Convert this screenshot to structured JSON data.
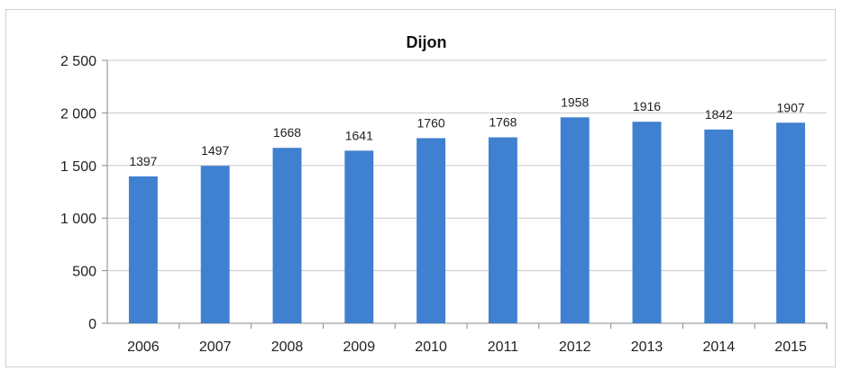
{
  "chart_data": {
    "type": "bar",
    "title": "Dijon",
    "xlabel": "",
    "ylabel": "",
    "categories": [
      "2006",
      "2007",
      "2008",
      "2009",
      "2010",
      "2011",
      "2012",
      "2013",
      "2014",
      "2015"
    ],
    "values": [
      1397,
      1497,
      1668,
      1641,
      1760,
      1768,
      1958,
      1916,
      1842,
      1907
    ],
    "data_labels": [
      "1397",
      "1497",
      "1668",
      "1641",
      "1760",
      "1768",
      "1958",
      "1916",
      "1842",
      "1907"
    ],
    "ylim": [
      0,
      2500
    ],
    "yticks": [
      0,
      500,
      1000,
      1500,
      2000,
      2500
    ],
    "ytick_labels": [
      "0",
      "500",
      "1 000",
      "1 500",
      "2 000",
      "2 500"
    ],
    "grid": true,
    "legend": "none",
    "bar_color": "#3f80d0",
    "grid_color": "#c8c8c8"
  }
}
